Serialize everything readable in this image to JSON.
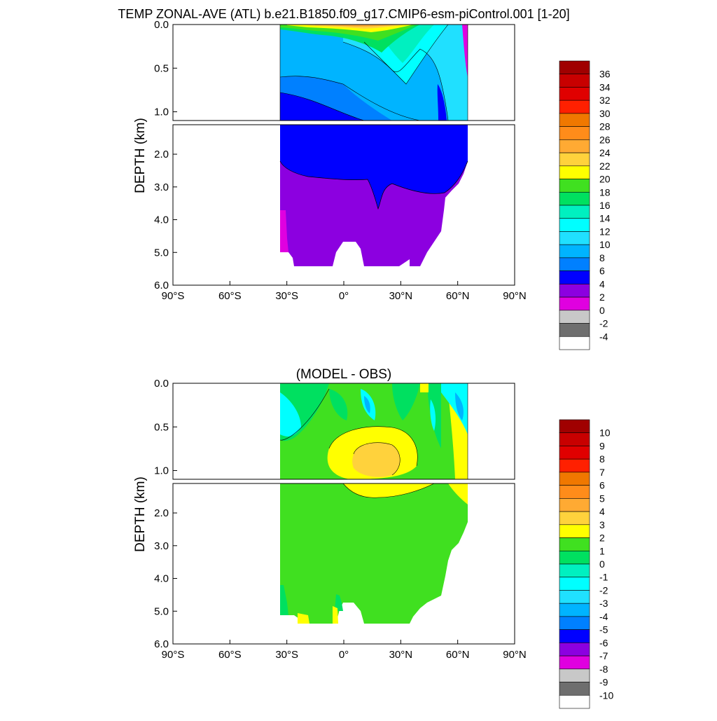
{
  "chart_data": [
    {
      "type": "heatmap",
      "title": "TEMP ZONAL-AVE (ATL) b.e21.B1850.f09_g17.CMIP6-esm-piControl.001 [1-20]",
      "ylabel": "DEPTH (km)",
      "xlabel": "",
      "x_ticks": [
        "90°S",
        "60°S",
        "30°S",
        "0°",
        "30°N",
        "60°N",
        "90°N"
      ],
      "x_tick_values": [
        -90,
        -60,
        -30,
        0,
        30,
        60,
        90
      ],
      "xlim": [
        -90,
        90
      ],
      "y_ticks_upper": [
        "0.0",
        "0.5",
        "1.0"
      ],
      "y_tick_values_upper": [
        0.0,
        0.5,
        1.0
      ],
      "y_ticks_lower": [
        "2.0",
        "3.0",
        "4.0",
        "5.0",
        "6.0"
      ],
      "y_tick_values_lower": [
        2.0,
        3.0,
        4.0,
        5.0,
        6.0
      ],
      "ylim_upper": [
        0,
        1.1
      ],
      "ylim_lower": [
        1.1,
        6.0
      ],
      "colorbar": {
        "labels": [
          "36",
          "34",
          "32",
          "30",
          "28",
          "26",
          "24",
          "22",
          "20",
          "18",
          "16",
          "14",
          "12",
          "10",
          "8",
          "6",
          "4",
          "2",
          "0",
          "-2",
          "-4"
        ],
        "colors": [
          "#a00000",
          "#c80000",
          "#e00000",
          "#ff2000",
          "#f07800",
          "#ff8c1a",
          "#ffaa33",
          "#ffd23c",
          "#ffff00",
          "#40e020",
          "#00e060",
          "#00f0c0",
          "#00ffff",
          "#20e0ff",
          "#00b4ff",
          "#0080ff",
          "#0000ff",
          "#8c00e0",
          "#e000e0",
          "#c8c8c8",
          "#6e6e6e",
          "#ffffff"
        ]
      }
    },
    {
      "type": "heatmap",
      "title": "(MODEL - OBS)",
      "ylabel": "DEPTH (km)",
      "xlabel": "",
      "x_ticks": [
        "90°S",
        "60°S",
        "30°S",
        "0°",
        "30°N",
        "60°N",
        "90°N"
      ],
      "x_tick_values": [
        -90,
        -60,
        -30,
        0,
        30,
        60,
        90
      ],
      "xlim": [
        -90,
        90
      ],
      "y_ticks_upper": [
        "0.0",
        "0.5",
        "1.0"
      ],
      "y_tick_values_upper": [
        0.0,
        0.5,
        1.0
      ],
      "y_ticks_lower": [
        "2.0",
        "3.0",
        "4.0",
        "5.0",
        "6.0"
      ],
      "y_tick_values_lower": [
        2.0,
        3.0,
        4.0,
        5.0,
        6.0
      ],
      "ylim_upper": [
        0,
        1.1
      ],
      "ylim_lower": [
        1.1,
        6.0
      ],
      "colorbar": {
        "labels": [
          "10",
          "9",
          "8",
          "7",
          "6",
          "5",
          "4",
          "3",
          "2",
          "1",
          "0",
          "-1",
          "-2",
          "-3",
          "-4",
          "-5",
          "-6",
          "-7",
          "-8",
          "-9",
          "-10"
        ],
        "colors": [
          "#a00000",
          "#c80000",
          "#e00000",
          "#ff2000",
          "#f07800",
          "#ff8c1a",
          "#ffaa33",
          "#ffd23c",
          "#ffff00",
          "#40e020",
          "#00e060",
          "#00f0c0",
          "#00ffff",
          "#20e0ff",
          "#00b4ff",
          "#0080ff",
          "#0000ff",
          "#8c00e0",
          "#e000e0",
          "#c8c8c8",
          "#6e6e6e",
          "#ffffff"
        ]
      }
    }
  ]
}
